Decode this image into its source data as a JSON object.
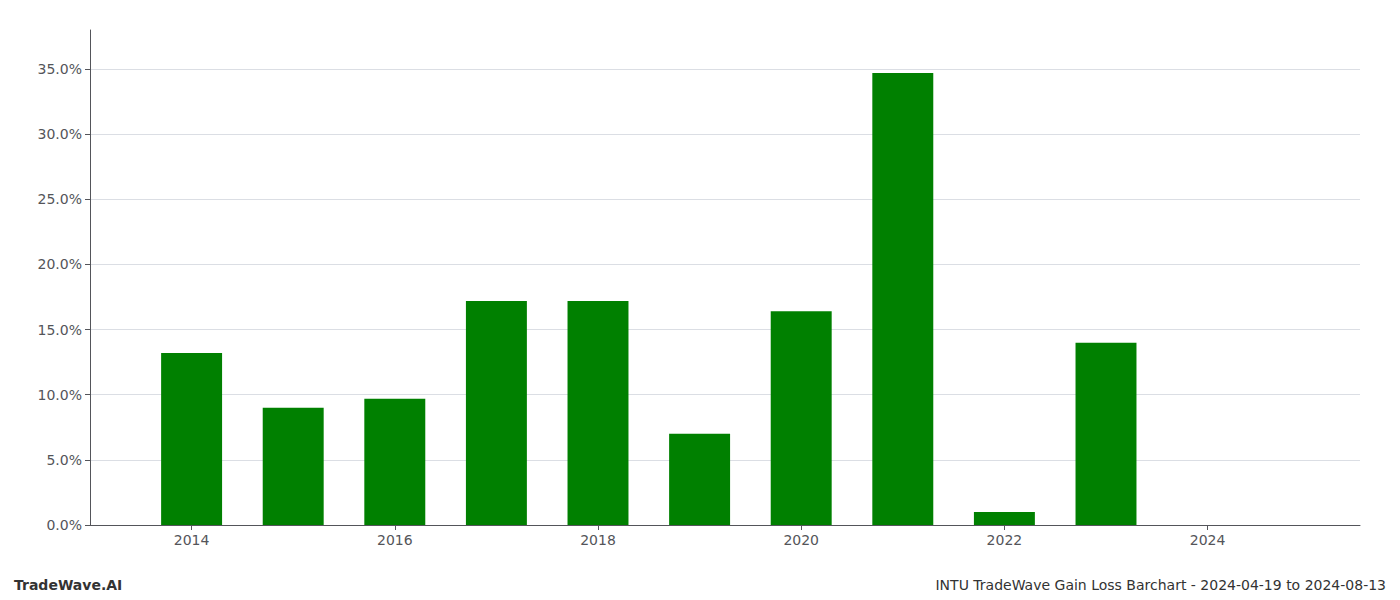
{
  "chart_data": {
    "type": "bar",
    "x": [
      2014,
      2015,
      2016,
      2017,
      2018,
      2019,
      2020,
      2021,
      2022,
      2023,
      2024
    ],
    "values": [
      0.132,
      0.09,
      0.097,
      0.172,
      0.172,
      0.07,
      0.164,
      0.347,
      0.01,
      0.14,
      0.0
    ],
    "color": "#008000",
    "xlim": [
      2013.0,
      2025.5
    ],
    "xticks": [
      2014,
      2016,
      2018,
      2020,
      2022,
      2024
    ],
    "ylim": [
      0.0,
      0.38
    ],
    "yticks": [
      {
        "value": 0.0,
        "label": "0.0%"
      },
      {
        "value": 0.05,
        "label": "5.0%"
      },
      {
        "value": 0.1,
        "label": "10.0%"
      },
      {
        "value": 0.15,
        "label": "15.0%"
      },
      {
        "value": 0.2,
        "label": "20.0%"
      },
      {
        "value": 0.25,
        "label": "25.0%"
      },
      {
        "value": 0.3,
        "label": "30.0%"
      },
      {
        "value": 0.35,
        "label": "35.0%"
      }
    ],
    "grid": true,
    "annotations": [
      "TradeWave.AI",
      "INTU TradeWave Gain Loss Barchart - 2024-04-19 to 2024-08-13"
    ]
  }
}
